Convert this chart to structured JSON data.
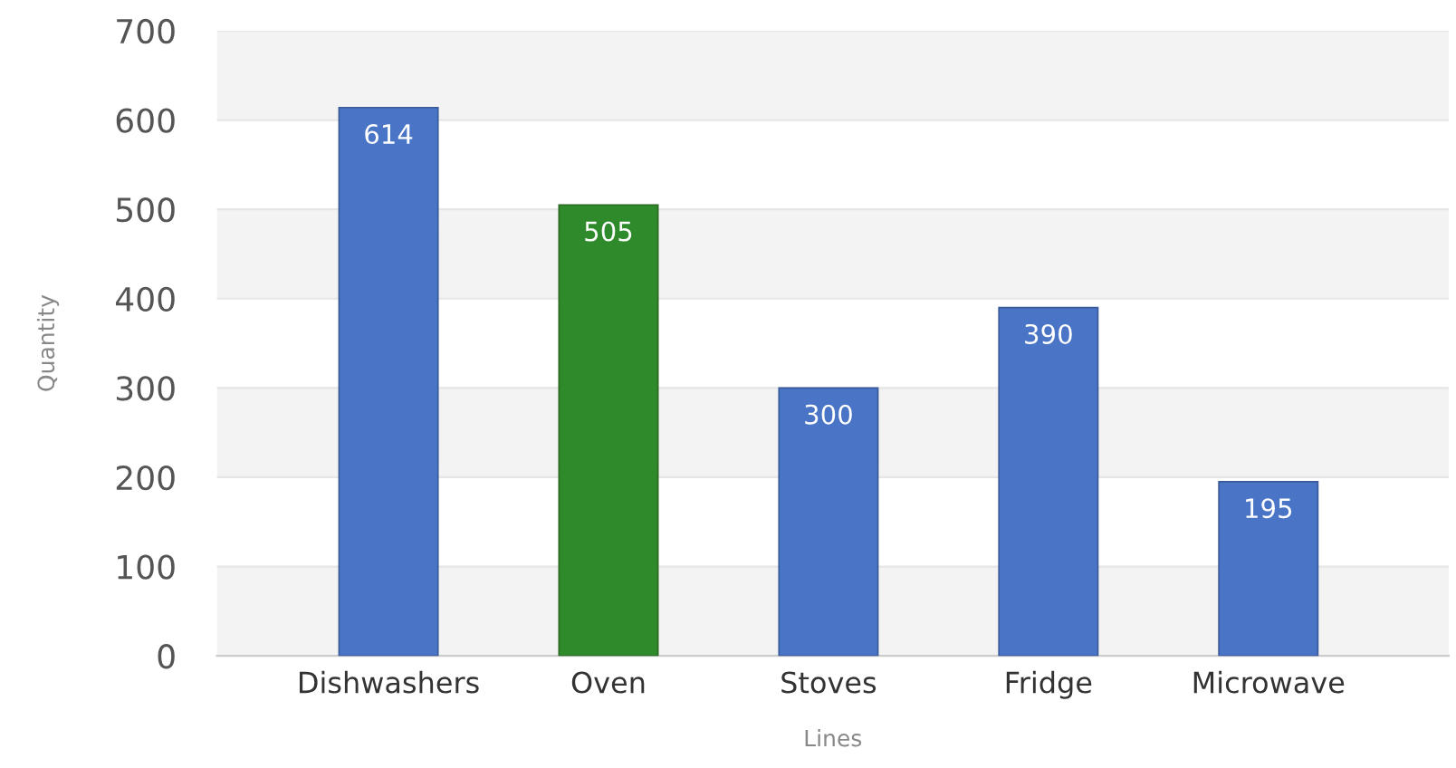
{
  "chart_data": {
    "type": "bar",
    "categories": [
      "Dishwashers",
      "Oven",
      "Stoves",
      "Fridge",
      "Microwave"
    ],
    "values": [
      614,
      505,
      300,
      390,
      195
    ],
    "colors": [
      "#4a74c6",
      "#2e8a2a",
      "#4a74c6",
      "#4a74c6",
      "#4a74c6"
    ],
    "xlabel": "Lines",
    "ylabel": "Quantity",
    "ylim": [
      0,
      700
    ],
    "yticks": [
      0,
      100,
      200,
      300,
      400,
      500,
      600,
      700
    ],
    "grid": "y",
    "data_labels": true,
    "legend": false
  }
}
